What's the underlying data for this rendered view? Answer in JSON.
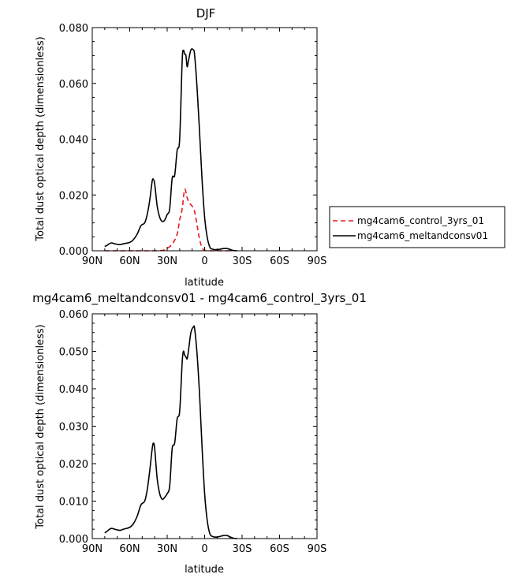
{
  "chart_data": [
    {
      "type": "line",
      "title": "DJF",
      "xlabel": "latitude",
      "ylabel": "Total dust optical depth (dimensionless)",
      "x_ticks": [
        "90N",
        "60N",
        "30N",
        "0",
        "30S",
        "60S",
        "90S"
      ],
      "y_ticks": [
        "0.000",
        "0.020",
        "0.040",
        "0.060",
        "0.080"
      ],
      "xlim": [
        90,
        -90
      ],
      "ylim": [
        0,
        0.08
      ],
      "legend": "right",
      "series": [
        {
          "name": "mg4cam6_control_3yrs_01",
          "color": "#e41a1c",
          "dash": "dashed",
          "points": [
            [
              80,
              0
            ],
            [
              60,
              0
            ],
            [
              40,
              0
            ],
            [
              33,
              0.0002
            ],
            [
              28,
              0.0015
            ],
            [
              25,
              0.003
            ],
            [
              22,
              0.006
            ],
            [
              20,
              0.011
            ],
            [
              18,
              0.015
            ],
            [
              16,
              0.022
            ],
            [
              14,
              0.019
            ],
            [
              12,
              0.017
            ],
            [
              10,
              0.016
            ],
            [
              8,
              0.014
            ],
            [
              6,
              0.009
            ],
            [
              4,
              0.004
            ],
            [
              2,
              0.001
            ],
            [
              0,
              0.0002
            ],
            [
              -5,
              0
            ],
            [
              -20,
              0
            ]
          ]
        },
        {
          "name": "mg4cam6_meltandconsv01",
          "color": "#000000",
          "dash": "solid",
          "points": [
            [
              80,
              0.0015
            ],
            [
              78,
              0.002
            ],
            [
              75,
              0.0028
            ],
            [
              72,
              0.0025
            ],
            [
              68,
              0.0022
            ],
            [
              65,
              0.0025
            ],
            [
              60,
              0.003
            ],
            [
              57,
              0.004
            ],
            [
              54,
              0.006
            ],
            [
              51,
              0.009
            ],
            [
              48,
              0.01
            ],
            [
              46,
              0.013
            ],
            [
              44,
              0.018
            ],
            [
              42,
              0.025
            ],
            [
              41,
              0.0255
            ],
            [
              40,
              0.024
            ],
            [
              38,
              0.016
            ],
            [
              36,
              0.012
            ],
            [
              34,
              0.0105
            ],
            [
              32,
              0.011
            ],
            [
              30,
              0.013
            ],
            [
              28,
              0.015
            ],
            [
              26,
              0.026
            ],
            [
              24,
              0.027
            ],
            [
              22,
              0.036
            ],
            [
              20,
              0.04
            ],
            [
              18,
              0.068
            ],
            [
              17,
              0.0718
            ],
            [
              16,
              0.0705
            ],
            [
              15,
              0.07
            ],
            [
              14,
              0.066
            ],
            [
              13,
              0.068
            ],
            [
              11,
              0.072
            ],
            [
              9,
              0.072
            ],
            [
              8,
              0.07
            ],
            [
              6,
              0.058
            ],
            [
              4,
              0.042
            ],
            [
              2,
              0.025
            ],
            [
              0,
              0.012
            ],
            [
              -2,
              0.005
            ],
            [
              -4,
              0.0015
            ],
            [
              -6,
              0.0006
            ],
            [
              -10,
              0.0004
            ],
            [
              -15,
              0.0008
            ],
            [
              -18,
              0.0008
            ],
            [
              -20,
              0.0005
            ],
            [
              -23,
              0.0001
            ],
            [
              -26,
              0
            ]
          ]
        }
      ]
    },
    {
      "type": "line",
      "title": "mg4cam6_meltandconsv01 - mg4cam6_control_3yrs_01",
      "xlabel": "latitude",
      "ylabel": "Total dust optical depth (dimensionless)",
      "x_ticks": [
        "90N",
        "60N",
        "30N",
        "0",
        "30S",
        "60S",
        "90S"
      ],
      "y_ticks": [
        "0.000",
        "0.010",
        "0.020",
        "0.030",
        "0.040",
        "0.050",
        "0.060"
      ],
      "xlim": [
        90,
        -90
      ],
      "ylim": [
        0,
        0.06
      ],
      "series": [
        {
          "color": "#000000",
          "dash": "solid",
          "points": [
            [
              80,
              0.0015
            ],
            [
              78,
              0.002
            ],
            [
              75,
              0.0027
            ],
            [
              72,
              0.0025
            ],
            [
              68,
              0.0022
            ],
            [
              65,
              0.0025
            ],
            [
              60,
              0.003
            ],
            [
              57,
              0.004
            ],
            [
              54,
              0.006
            ],
            [
              51,
              0.009
            ],
            [
              48,
              0.01
            ],
            [
              46,
              0.013
            ],
            [
              44,
              0.018
            ],
            [
              42,
              0.024
            ],
            [
              41,
              0.0255
            ],
            [
              40,
              0.024
            ],
            [
              38,
              0.016
            ],
            [
              36,
              0.012
            ],
            [
              34,
              0.0105
            ],
            [
              32,
              0.011
            ],
            [
              30,
              0.012
            ],
            [
              28,
              0.014
            ],
            [
              26,
              0.024
            ],
            [
              24,
              0.0255
            ],
            [
              22,
              0.032
            ],
            [
              20,
              0.034
            ],
            [
              18,
              0.047
            ],
            [
              17,
              0.05
            ],
            [
              16,
              0.049
            ],
            [
              15,
              0.0485
            ],
            [
              14,
              0.048
            ],
            [
              13,
              0.05
            ],
            [
              11,
              0.055
            ],
            [
              9,
              0.0565
            ],
            [
              8,
              0.056
            ],
            [
              6,
              0.049
            ],
            [
              4,
              0.038
            ],
            [
              2,
              0.024
            ],
            [
              0,
              0.012
            ],
            [
              -2,
              0.005
            ],
            [
              -4,
              0.0015
            ],
            [
              -6,
              0.0006
            ],
            [
              -10,
              0.0004
            ],
            [
              -15,
              0.0008
            ],
            [
              -18,
              0.0008
            ],
            [
              -20,
              0.0005
            ],
            [
              -23,
              0.0001
            ],
            [
              -26,
              0
            ]
          ]
        }
      ]
    }
  ]
}
